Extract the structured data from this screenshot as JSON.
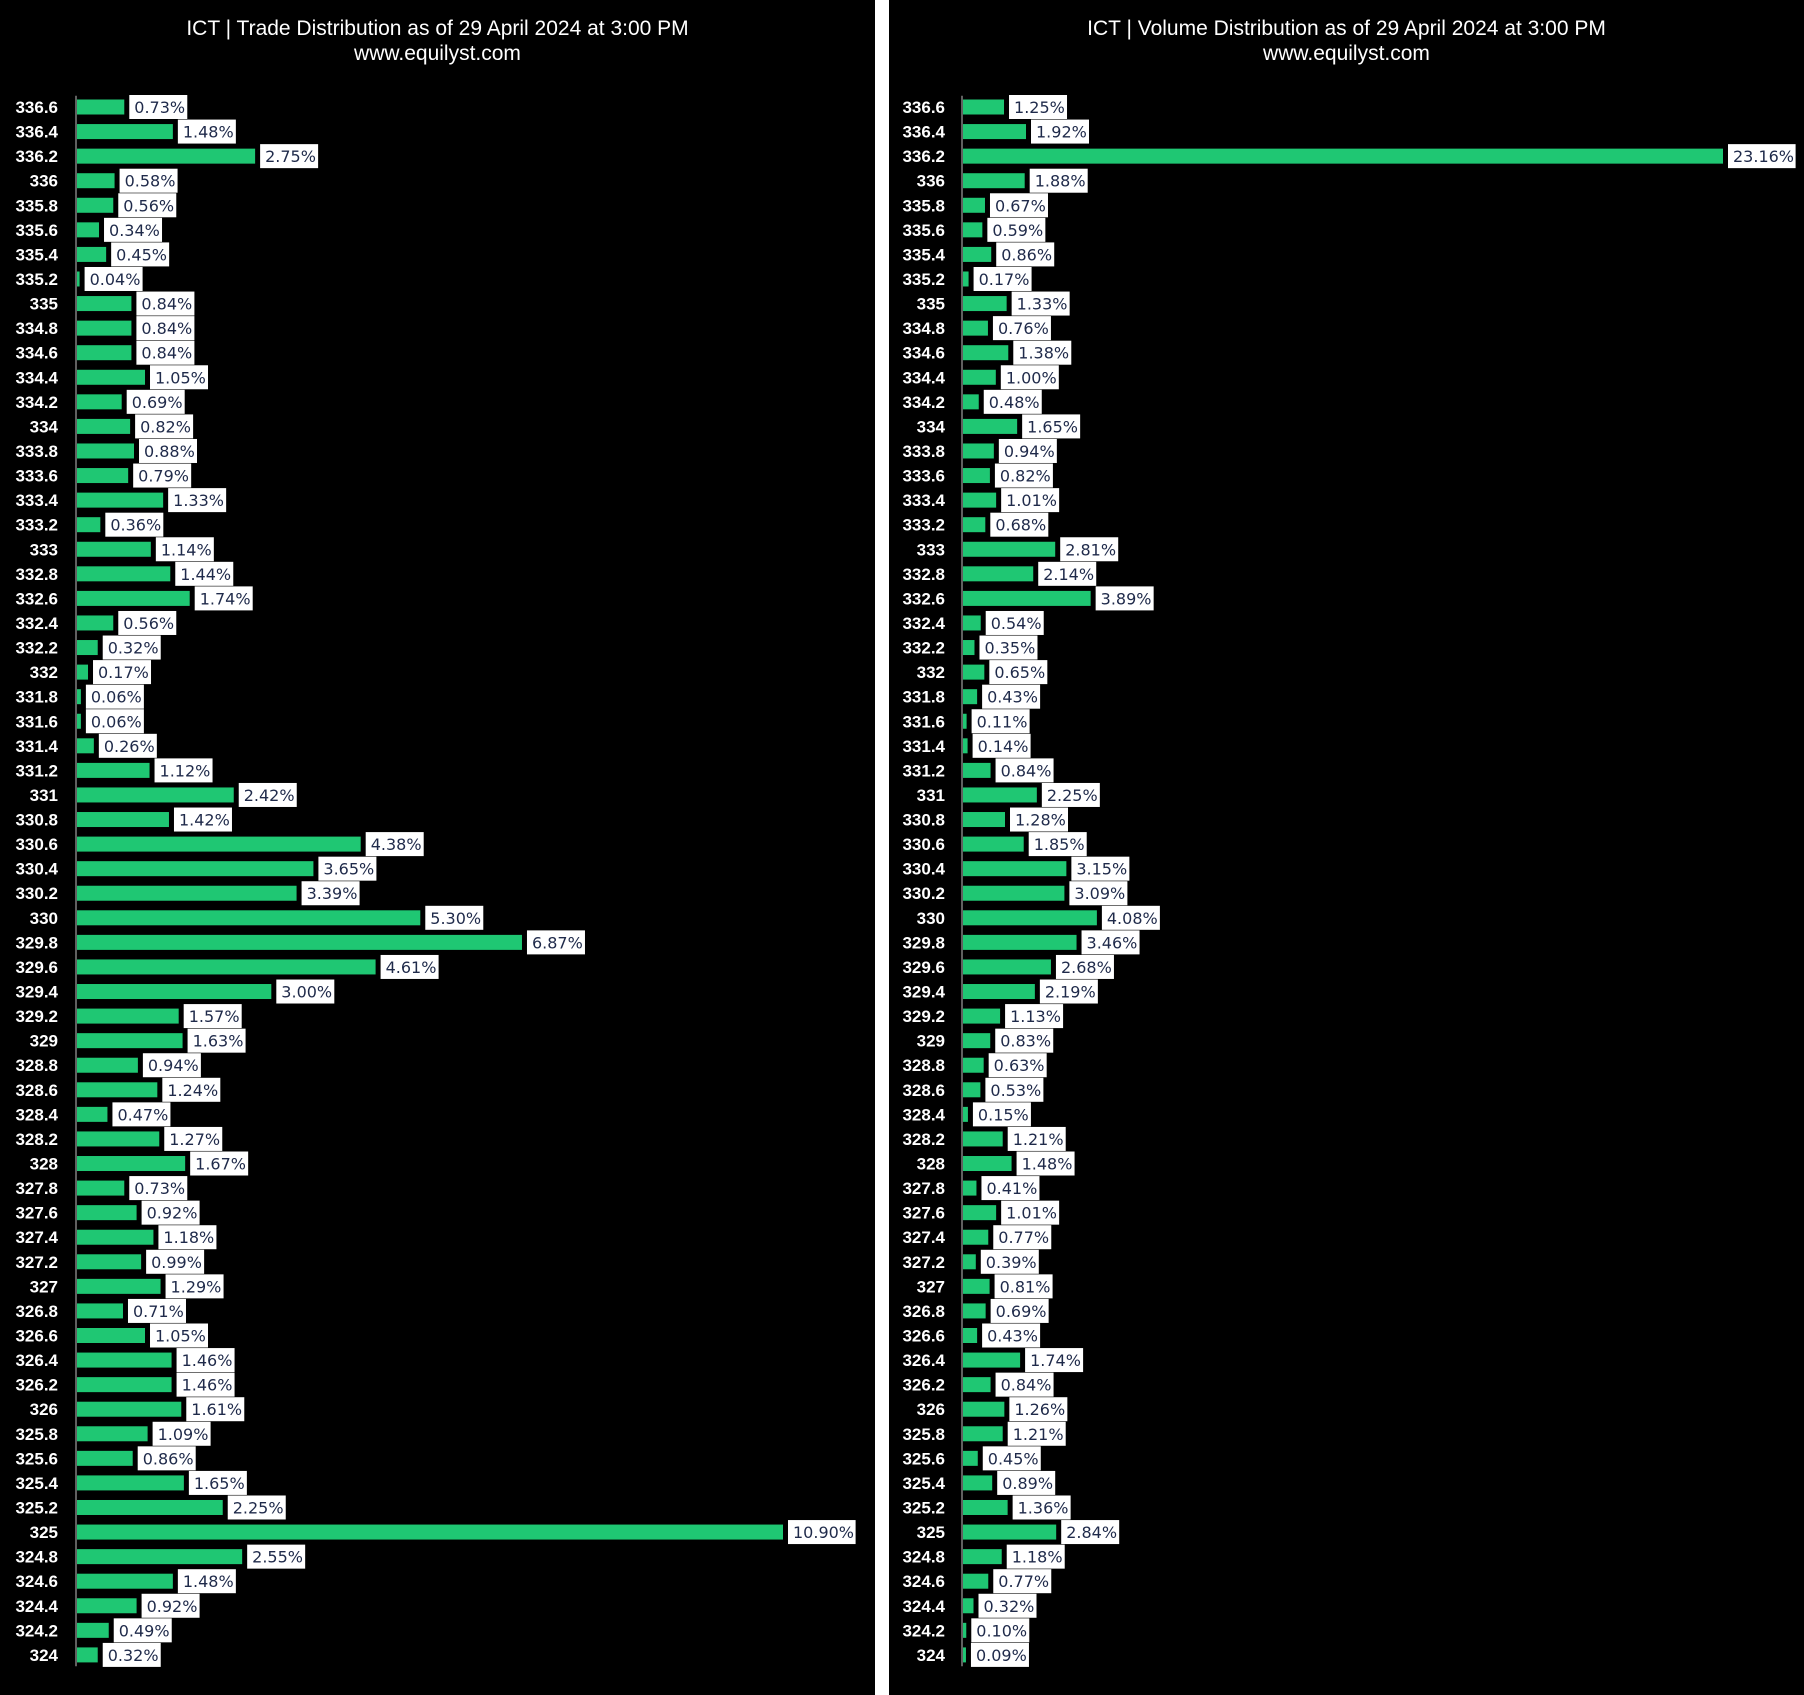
{
  "chart_data": [
    {
      "type": "bar",
      "orientation": "horizontal",
      "title": "ICT | Trade Distribution as of 29 April 2024 at 3:00 PM",
      "subtitle": "www.equilyst.com",
      "categories": [
        "336.6",
        "336.4",
        "336.2",
        "336",
        "335.8",
        "335.6",
        "335.4",
        "335.2",
        "335",
        "334.8",
        "334.6",
        "334.4",
        "334.2",
        "334",
        "333.8",
        "333.6",
        "333.4",
        "333.2",
        "333",
        "332.8",
        "332.6",
        "332.4",
        "332.2",
        "332",
        "331.8",
        "331.6",
        "331.4",
        "331.2",
        "331",
        "330.8",
        "330.6",
        "330.4",
        "330.2",
        "330",
        "329.8",
        "329.6",
        "329.4",
        "329.2",
        "329",
        "328.8",
        "328.6",
        "328.4",
        "328.2",
        "328",
        "327.8",
        "327.6",
        "327.4",
        "327.2",
        "327",
        "326.8",
        "326.6",
        "326.4",
        "326.2",
        "326",
        "325.8",
        "325.6",
        "325.4",
        "325.2",
        "325",
        "324.8",
        "324.6",
        "324.4",
        "324.2",
        "324"
      ],
      "values": [
        0.73,
        1.48,
        2.75,
        0.58,
        0.56,
        0.34,
        0.45,
        0.04,
        0.84,
        0.84,
        0.84,
        1.05,
        0.69,
        0.82,
        0.88,
        0.79,
        1.33,
        0.36,
        1.14,
        1.44,
        1.74,
        0.56,
        0.32,
        0.17,
        0.06,
        0.06,
        0.26,
        1.12,
        2.42,
        1.42,
        4.38,
        3.65,
        3.39,
        5.3,
        6.87,
        4.61,
        3.0,
        1.57,
        1.63,
        0.94,
        1.24,
        0.47,
        1.27,
        1.67,
        0.73,
        0.92,
        1.18,
        0.99,
        1.29,
        0.71,
        1.05,
        1.46,
        1.46,
        1.61,
        1.09,
        0.86,
        1.65,
        2.25,
        10.9,
        2.55,
        1.48,
        0.92,
        0.49,
        0.32
      ],
      "labels": [
        "0.73%",
        "1.48%",
        "2.75%",
        "0.58%",
        "0.56%",
        "0.34%",
        "0.45%",
        "0.04%",
        "0.84%",
        "0.84%",
        "0.84%",
        "1.05%",
        "0.69%",
        "0.82%",
        "0.88%",
        "0.79%",
        "1.33%",
        "0.36%",
        "1.14%",
        "1.44%",
        "1.74%",
        "0.56%",
        "0.32%",
        "0.17%",
        "0.06%",
        "0.06%",
        "0.26%",
        "1.12%",
        "2.42%",
        "1.42%",
        "4.38%",
        "3.65%",
        "3.39%",
        "5.30%",
        "6.87%",
        "4.61%",
        "3.00%",
        "1.57%",
        "1.63%",
        "0.94%",
        "1.24%",
        "0.47%",
        "1.27%",
        "1.67%",
        "0.73%",
        "0.92%",
        "1.18%",
        "0.99%",
        "1.29%",
        "0.71%",
        "1.05%",
        "1.46%",
        "1.46%",
        "1.61%",
        "1.09%",
        "0.86%",
        "1.65%",
        "2.25%",
        "10.90%",
        "2.55%",
        "1.48%",
        "0.92%",
        "0.49%",
        "0.32%"
      ],
      "max_value": 10.9,
      "bar_color": "#1fc773",
      "background": "#000000",
      "label_box_color": "#ffffff",
      "grid": false,
      "legend": "none"
    },
    {
      "type": "bar",
      "orientation": "horizontal",
      "title": "ICT | Volume Distribution as of 29 April 2024 at 3:00 PM",
      "subtitle": "www.equilyst.com",
      "categories": [
        "336.6",
        "336.4",
        "336.2",
        "336",
        "335.8",
        "335.6",
        "335.4",
        "335.2",
        "335",
        "334.8",
        "334.6",
        "334.4",
        "334.2",
        "334",
        "333.8",
        "333.6",
        "333.4",
        "333.2",
        "333",
        "332.8",
        "332.6",
        "332.4",
        "332.2",
        "332",
        "331.8",
        "331.6",
        "331.4",
        "331.2",
        "331",
        "330.8",
        "330.6",
        "330.4",
        "330.2",
        "330",
        "329.8",
        "329.6",
        "329.4",
        "329.2",
        "329",
        "328.8",
        "328.6",
        "328.4",
        "328.2",
        "328",
        "327.8",
        "327.6",
        "327.4",
        "327.2",
        "327",
        "326.8",
        "326.6",
        "326.4",
        "326.2",
        "326",
        "325.8",
        "325.6",
        "325.4",
        "325.2",
        "325",
        "324.8",
        "324.6",
        "324.4",
        "324.2",
        "324"
      ],
      "values": [
        1.25,
        1.92,
        23.16,
        1.88,
        0.67,
        0.59,
        0.86,
        0.17,
        1.33,
        0.76,
        1.38,
        1.0,
        0.48,
        1.65,
        0.94,
        0.82,
        1.01,
        0.68,
        2.81,
        2.14,
        3.89,
        0.54,
        0.35,
        0.65,
        0.43,
        0.11,
        0.14,
        0.84,
        2.25,
        1.28,
        1.85,
        3.15,
        3.09,
        4.08,
        3.46,
        2.68,
        2.19,
        1.13,
        0.83,
        0.63,
        0.53,
        0.15,
        1.21,
        1.48,
        0.41,
        1.01,
        0.77,
        0.39,
        0.81,
        0.69,
        0.43,
        1.74,
        0.84,
        1.26,
        1.21,
        0.45,
        0.89,
        1.36,
        2.84,
        1.18,
        0.77,
        0.32,
        0.1,
        0.09
      ],
      "labels": [
        "1.25%",
        "1.92%",
        "23.16%",
        "1.88%",
        "0.67%",
        "0.59%",
        "0.86%",
        "0.17%",
        "1.33%",
        "0.76%",
        "1.38%",
        "1.00%",
        "0.48%",
        "1.65%",
        "0.94%",
        "0.82%",
        "1.01%",
        "0.68%",
        "2.81%",
        "2.14%",
        "3.89%",
        "0.54%",
        "0.35%",
        "0.65%",
        "0.43%",
        "0.11%",
        "0.14%",
        "0.84%",
        "2.25%",
        "1.28%",
        "1.85%",
        "3.15%",
        "3.09%",
        "4.08%",
        "3.46%",
        "2.68%",
        "2.19%",
        "1.13%",
        "0.83%",
        "0.63%",
        "0.53%",
        "0.15%",
        "1.21%",
        "1.48%",
        "0.41%",
        "1.01%",
        "0.77%",
        "0.39%",
        "0.81%",
        "0.69%",
        "0.43%",
        "1.74%",
        "0.84%",
        "1.26%",
        "1.21%",
        "0.45%",
        "0.89%",
        "1.36%",
        "2.84%",
        "1.18%",
        "0.77%",
        "0.32%",
        "0.10%",
        "0.09%"
      ],
      "max_value": 23.16,
      "bar_color": "#1fc773",
      "background": "#000000",
      "label_box_color": "#ffffff",
      "grid": false,
      "legend": "none"
    }
  ]
}
